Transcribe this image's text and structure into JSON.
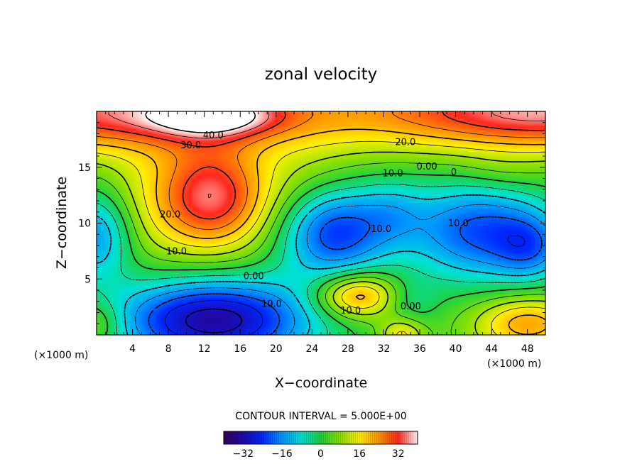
{
  "chart_data": {
    "type": "heatmap",
    "title": "zonal velocity",
    "xlabel": "X−coordinate",
    "ylabel": "Z−coordinate",
    "x_unit_left": "(×1000 m)",
    "x_unit_right": "(×1000 m)",
    "xlim": [
      0,
      50
    ],
    "ylim": [
      0,
      20
    ],
    "xticks": [
      "4",
      "8",
      "12",
      "16",
      "20",
      "24",
      "28",
      "32",
      "36",
      "40",
      "44",
      "48"
    ],
    "yticks": [
      "5",
      "10",
      "15"
    ],
    "contour_interval_text": "CONTOUR INTERVAL = 5.000E+00",
    "contour_interval": 5,
    "colorbar": {
      "ticks": [
        "−32",
        "−16",
        "0",
        "16",
        "32"
      ],
      "range": [
        -40,
        40
      ]
    },
    "contour_labels": [
      {
        "text": "40.0",
        "x": 13,
        "y": 17.6
      },
      {
        "text": "30.0",
        "x": 10.5,
        "y": 16.7
      },
      {
        "text": "20.0",
        "x": 34.4,
        "y": 17.0
      },
      {
        "text": "10.0",
        "x": 33.0,
        "y": 14.2
      },
      {
        "text": "0.00",
        "x": 36.8,
        "y": 14.8
      },
      {
        "text": "0",
        "x": 39.8,
        "y": 14.3
      },
      {
        "text": "20.0",
        "x": 8.2,
        "y": 10.5
      },
      {
        "text": "10.0",
        "x": 8.9,
        "y": 7.2
      },
      {
        "text": "10.0",
        "x": 31.7,
        "y": 9.2
      },
      {
        "text": "10.0",
        "x": 40.3,
        "y": 9.7
      },
      {
        "text": "0.00",
        "x": 17.5,
        "y": 5.0
      },
      {
        "text": "10.0",
        "x": 19.5,
        "y": 2.5
      },
      {
        "text": "10.0",
        "x": 28.3,
        "y": 1.9
      },
      {
        "text": "0.00",
        "x": 35.0,
        "y": 2.3
      }
    ],
    "field": {
      "background": 3,
      "features": [
        {
          "cx": 0,
          "cy": 20,
          "rx": 30,
          "ry": 3.6,
          "amp": 30
        },
        {
          "cx": 50,
          "cy": 20,
          "rx": 18,
          "ry": 3.6,
          "amp": 32
        },
        {
          "cx": 13,
          "cy": 19.6,
          "rx": 7,
          "ry": 1.8,
          "amp": 20
        },
        {
          "cx": 13,
          "cy": 12.3,
          "rx": 6.5,
          "ry": 4.8,
          "amp": 30
        },
        {
          "cx": 5,
          "cy": 12,
          "rx": 7,
          "ry": 6,
          "amp": 6
        },
        {
          "cx": 24,
          "cy": 14,
          "rx": 6,
          "ry": 4,
          "amp": 5
        },
        {
          "cx": 26.5,
          "cy": 9.2,
          "rx": 6,
          "ry": 4.2,
          "amp": -26
        },
        {
          "cx": 33,
          "cy": 11,
          "rx": 4,
          "ry": 3,
          "amp": -8
        },
        {
          "cx": 42.5,
          "cy": 9.3,
          "rx": 8,
          "ry": 4.5,
          "amp": -24
        },
        {
          "cx": 48.5,
          "cy": 7.8,
          "rx": 4,
          "ry": 3,
          "amp": -14
        },
        {
          "cx": 13,
          "cy": 1.3,
          "rx": 11,
          "ry": 3.8,
          "amp": -36
        },
        {
          "cx": 0,
          "cy": 9,
          "rx": 4,
          "ry": 4,
          "amp": -20
        },
        {
          "cx": 29,
          "cy": 3.5,
          "rx": 4.5,
          "ry": 2,
          "amp": 24
        },
        {
          "cx": 48,
          "cy": 1,
          "rx": 6,
          "ry": 2.5,
          "amp": 20
        },
        {
          "cx": 34,
          "cy": 0,
          "rx": 2.5,
          "ry": 1.5,
          "amp": 14
        },
        {
          "cx": 0,
          "cy": 1,
          "rx": 3,
          "ry": 2,
          "amp": 10
        },
        {
          "cx": 35,
          "cy": 3,
          "rx": 3,
          "ry": 2,
          "amp": -6
        },
        {
          "cx": 45,
          "cy": 14.5,
          "rx": 5,
          "ry": 2,
          "amp": 4
        }
      ]
    }
  }
}
